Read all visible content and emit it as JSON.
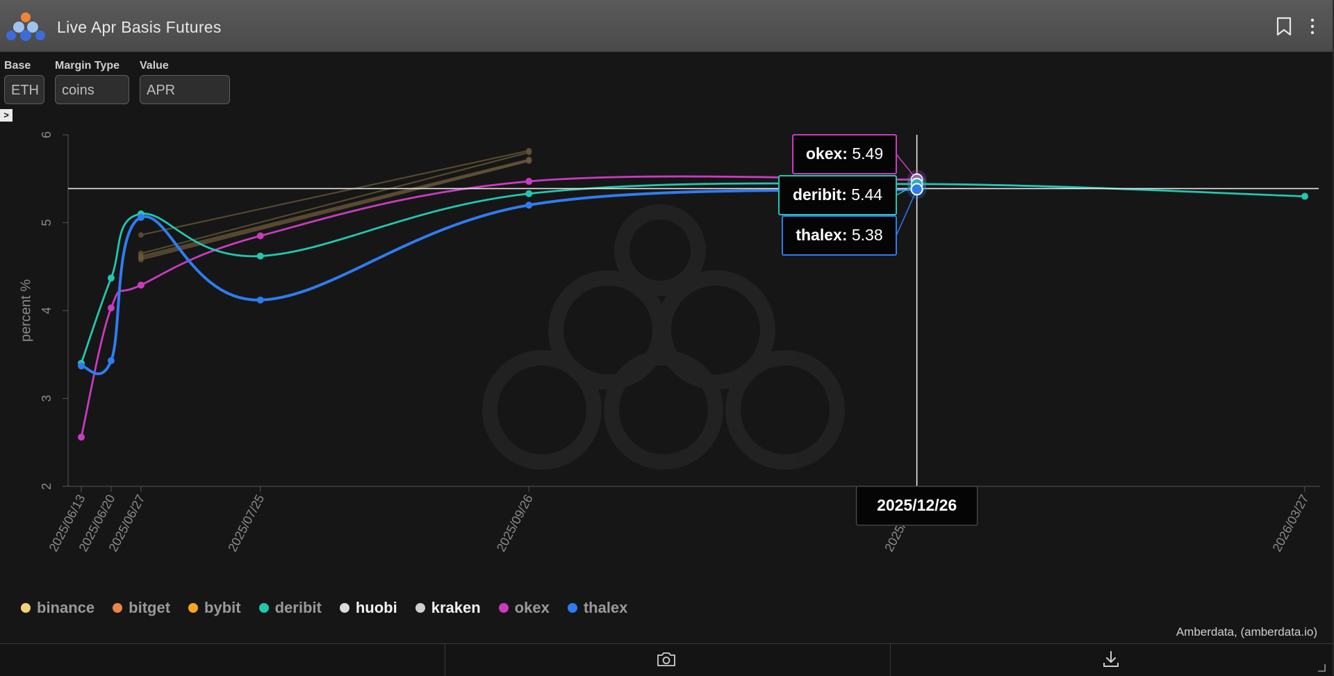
{
  "window": {
    "title": "Live Apr Basis Futures"
  },
  "controls": [
    {
      "label": "Base",
      "value": "ETH"
    },
    {
      "label": "Margin Type",
      "value": "coins"
    },
    {
      "label": "Value",
      "value": "APR"
    }
  ],
  "collapse_glyph": ">",
  "colors": {
    "binance": "#f3d27a",
    "bitget": "#e9874b",
    "bybit": "#f5a623",
    "deribit": "#22c7b0",
    "huobi": "#dcdcdc",
    "kraken": "#cfcfcf",
    "okex": "#c93bc0",
    "thalex": "#2f7cf0"
  },
  "chart_data": {
    "type": "line",
    "ylabel": "percent %",
    "ylim": [
      2,
      6
    ],
    "yticks": [
      "2",
      "3",
      "4",
      "5",
      "6"
    ],
    "x_ticks": [
      "2025/06/13",
      "2025/06/20",
      "2025/06/27",
      "2025/07/25",
      "2025/09/26",
      "2025/12/26",
      "2026/03/27"
    ],
    "hover_x": "2025/12/26",
    "crosshair_y": 5.38,
    "series": [
      {
        "name": "binance",
        "x": [
          "2025/06/27",
          "2025/09/26"
        ],
        "y": [
          4.62,
          5.72
        ]
      },
      {
        "name": "bitget",
        "x": [
          "2025/06/27",
          "2025/09/26"
        ],
        "y": [
          4.58,
          5.7
        ]
      },
      {
        "name": "bybit",
        "x": [
          "2025/06/27",
          "2025/09/26"
        ],
        "y": [
          4.86,
          5.82
        ]
      },
      {
        "name": "deribit",
        "x": [
          "2025/06/13",
          "2025/06/20",
          "2025/06/27",
          "2025/07/25",
          "2025/09/26",
          "2025/12/26",
          "2026/03/27"
        ],
        "y": [
          3.4,
          4.37,
          5.1,
          4.62,
          5.33,
          5.44,
          5.3
        ]
      },
      {
        "name": "huobi",
        "x": [
          "2025/06/27",
          "2025/09/26"
        ],
        "y": [
          4.65,
          5.8
        ]
      },
      {
        "name": "kraken",
        "x": [
          "2025/06/27",
          "2025/09/26"
        ],
        "y": [
          4.6,
          5.71
        ]
      },
      {
        "name": "okex",
        "x": [
          "2025/06/13",
          "2025/06/20",
          "2025/06/27",
          "2025/07/25",
          "2025/09/26",
          "2025/12/26"
        ],
        "y": [
          2.56,
          4.03,
          4.29,
          4.85,
          5.47,
          5.49
        ]
      },
      {
        "name": "thalex",
        "x": [
          "2025/06/13",
          "2025/06/20",
          "2025/06/27",
          "2025/07/25",
          "2025/09/26",
          "2025/12/26"
        ],
        "y": [
          3.37,
          3.43,
          5.06,
          4.12,
          5.2,
          5.38
        ]
      }
    ],
    "tooltips": [
      {
        "name": "okex",
        "value": "5.49"
      },
      {
        "name": "deribit",
        "value": "5.44"
      },
      {
        "name": "thalex",
        "value": "5.38"
      }
    ],
    "legend": [
      "binance",
      "bitget",
      "bybit",
      "deribit",
      "huobi",
      "kraken",
      "okex",
      "thalex"
    ],
    "legend_bold": [
      "huobi",
      "kraken"
    ]
  },
  "credit": "Amberdata, (amberdata.io)"
}
